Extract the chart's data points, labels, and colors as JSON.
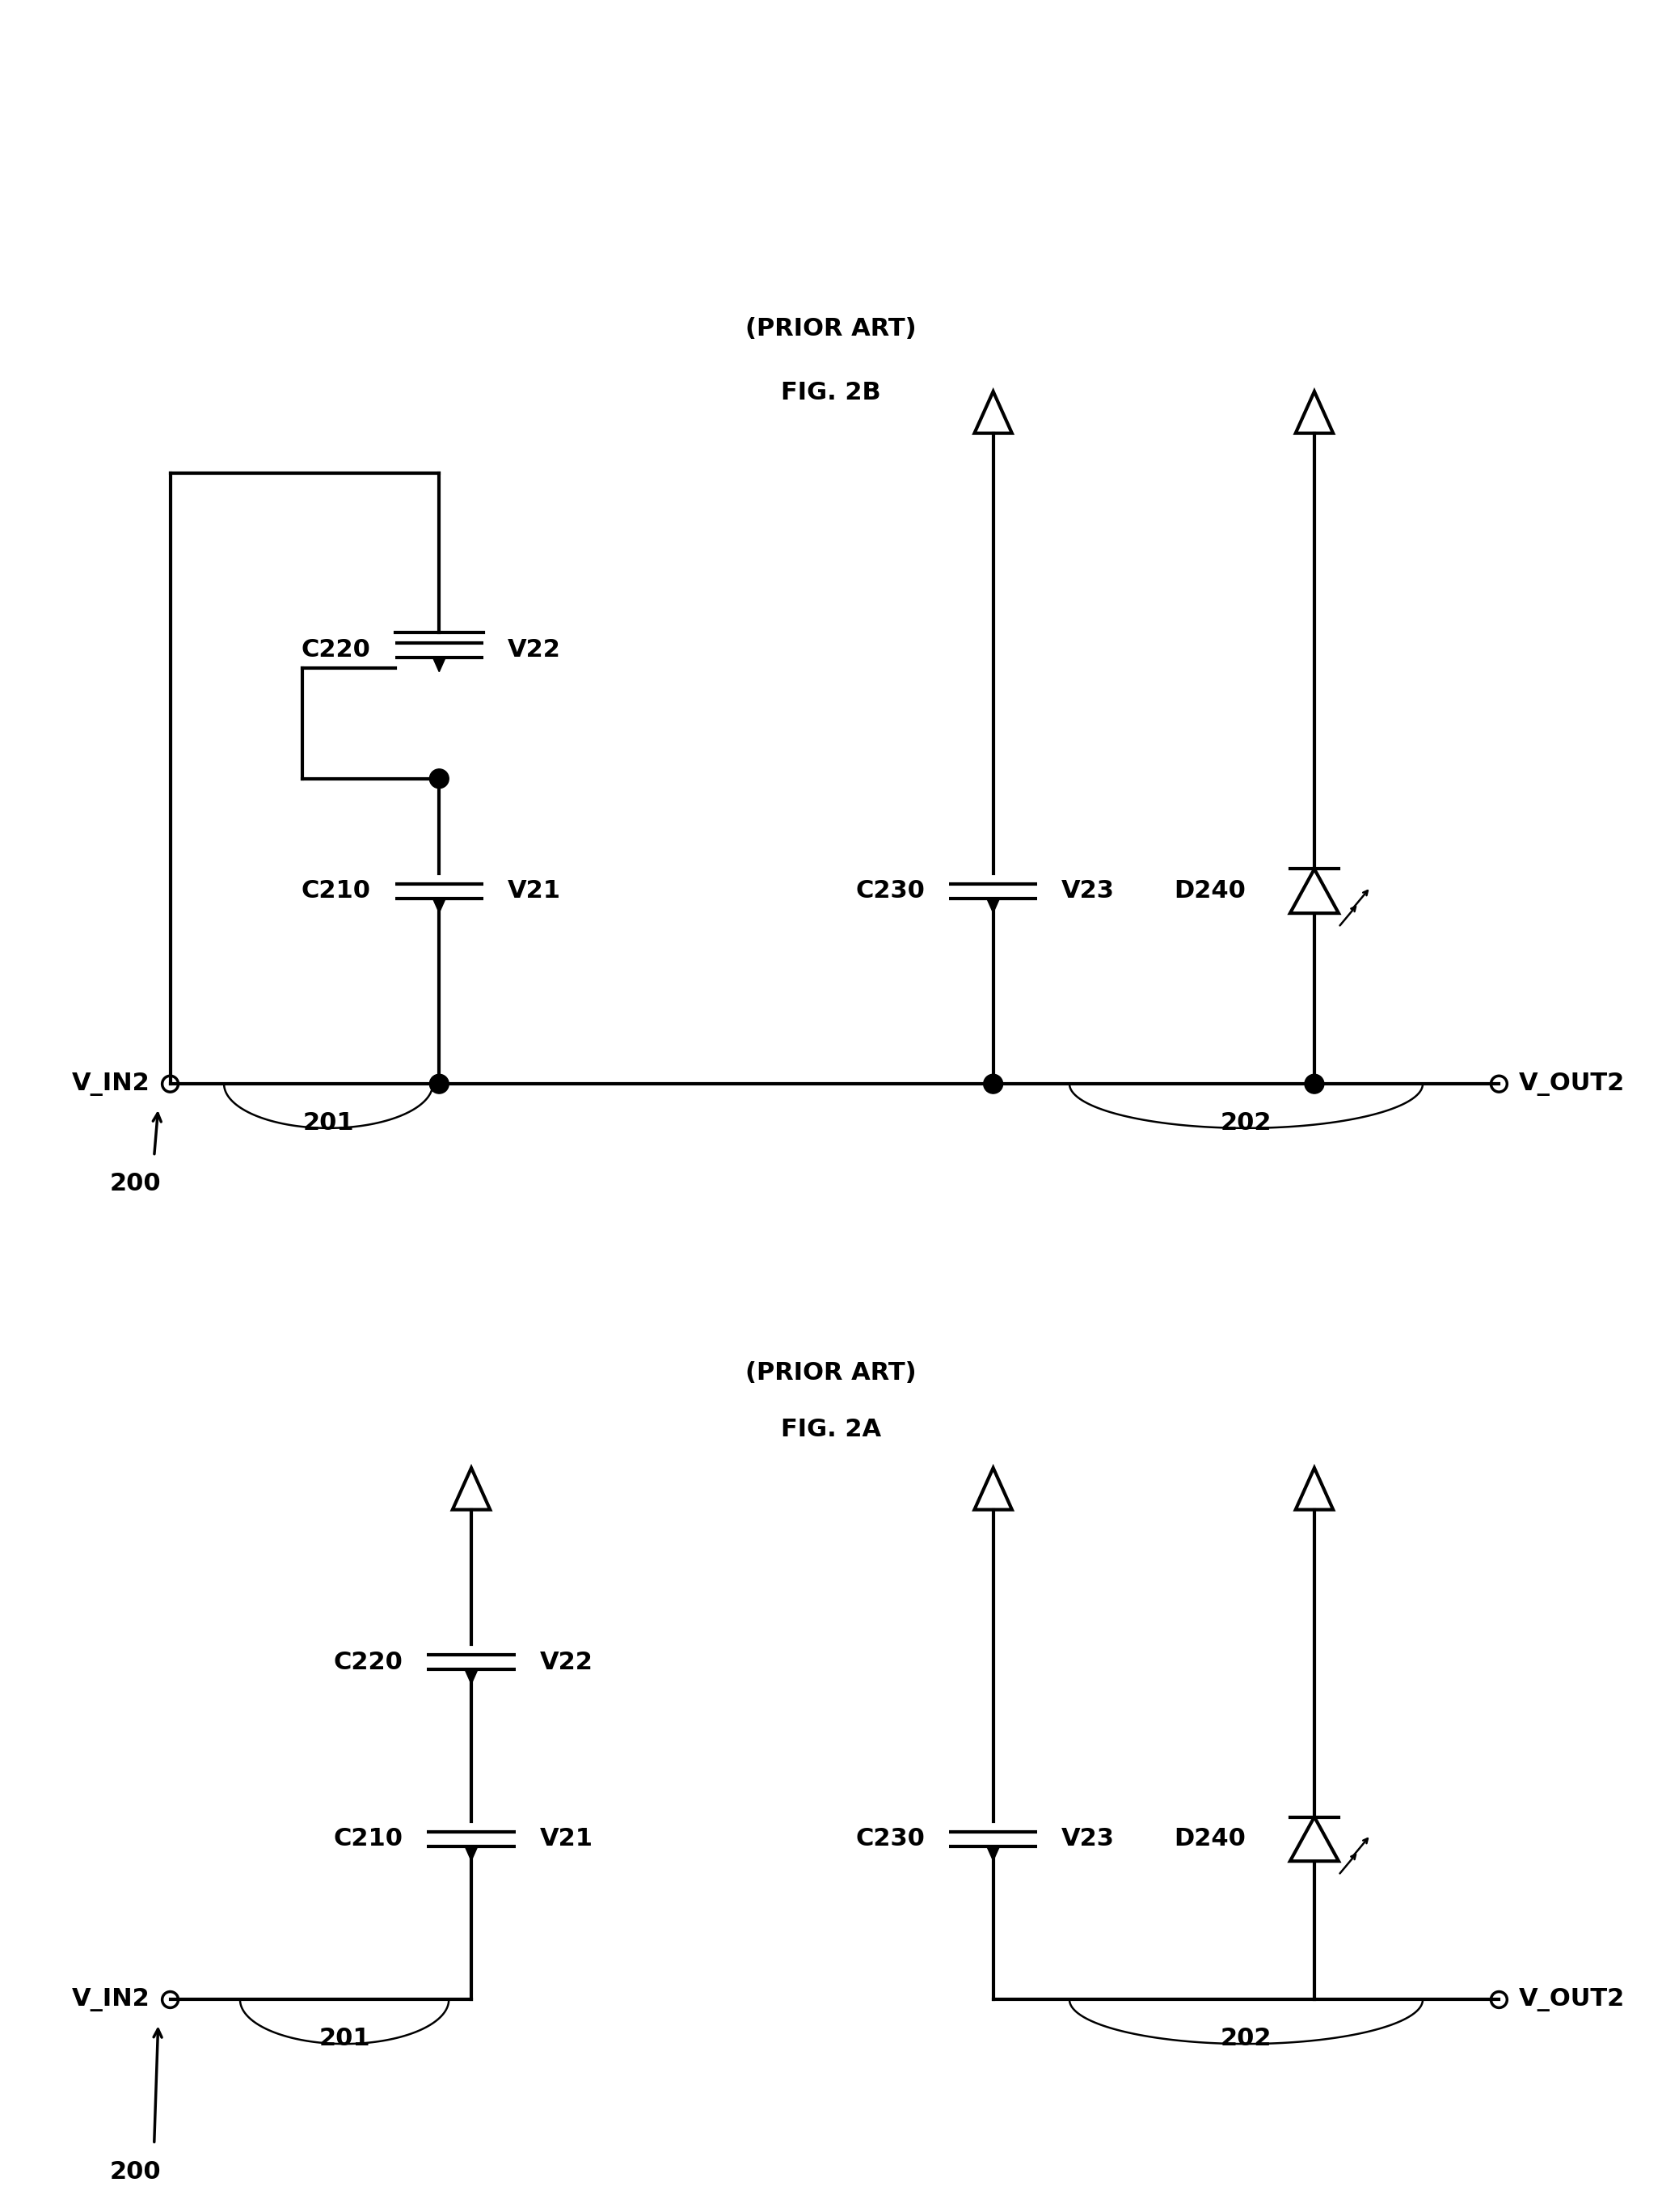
{
  "fig_width": 20.56,
  "fig_height": 27.35,
  "bg_color": "#ffffff",
  "line_color": "#000000",
  "lw": 3.0,
  "lw_thin": 1.8,
  "fontsize_label": 22,
  "fontsize_ref": 22,
  "fontsize_caption": 22,
  "fig2a_caption": "FIG. 2A",
  "fig2a_prior": "(PRIOR ART)",
  "fig2b_caption": "FIG. 2B",
  "fig2b_prior": "(PRIOR ART)"
}
